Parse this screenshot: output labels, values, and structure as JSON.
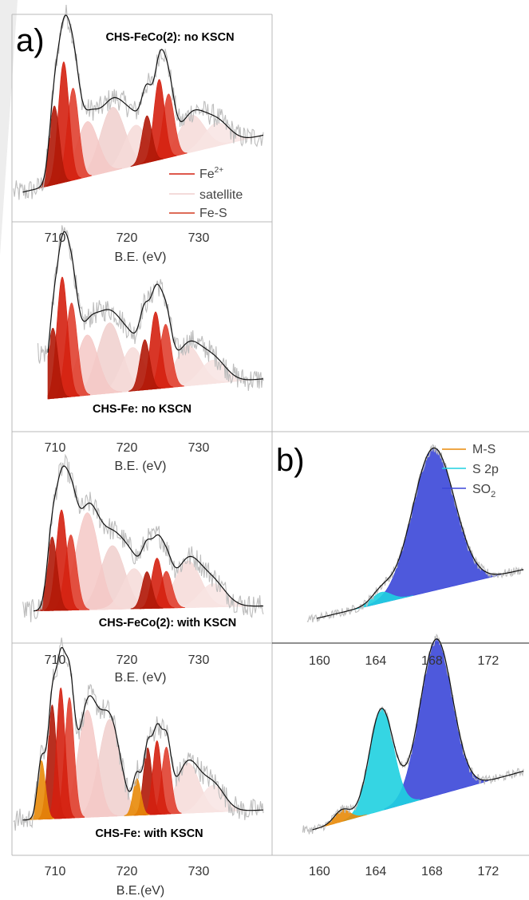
{
  "panel_labels": {
    "a": "a)",
    "b": "b)"
  },
  "chart_data": [
    {
      "id": "a1",
      "type": "area",
      "title": "CHS-FeCo(2): no KSCN",
      "xlabel": "B.E. (eV)",
      "xticks": [
        710,
        720,
        730
      ],
      "xlim": [
        704,
        739
      ],
      "legend": [
        "Fe2+",
        "satellite",
        "Fe-S"
      ],
      "legend_position": "right",
      "components": [
        {
          "series": "Fe-S",
          "center": 709.9,
          "height": 0.47,
          "width": 0.7,
          "color": "#b01808"
        },
        {
          "series": "Fe2+",
          "center": 711.2,
          "height": 0.72,
          "width": 0.75,
          "color": "#d42010"
        },
        {
          "series": "Fe2+",
          "center": 712.5,
          "height": 0.55,
          "width": 0.8,
          "color": "#e04030"
        },
        {
          "series": "satellite",
          "center": 714.5,
          "height": 0.33,
          "width": 1.5,
          "color": "#f4c8c6"
        },
        {
          "series": "satellite",
          "center": 718.0,
          "height": 0.38,
          "width": 1.7,
          "color": "#f0cfcd"
        },
        {
          "series": "satellite",
          "center": 721.2,
          "height": 0.24,
          "width": 1.6,
          "color": "#f6dad8"
        },
        {
          "series": "Fe-S",
          "center": 722.8,
          "height": 0.28,
          "width": 0.7,
          "color": "#b01808"
        },
        {
          "series": "Fe2+",
          "center": 724.5,
          "height": 0.48,
          "width": 0.75,
          "color": "#d42010"
        },
        {
          "series": "Fe2+",
          "center": 725.8,
          "height": 0.38,
          "width": 0.8,
          "color": "#e04030"
        },
        {
          "series": "satellite",
          "center": 729.0,
          "height": 0.22,
          "width": 1.8,
          "color": "#f6dad8"
        },
        {
          "series": "satellite",
          "center": 732.5,
          "height": 0.14,
          "width": 1.8,
          "color": "#f8e4e3"
        }
      ],
      "background": [
        [
          705.5,
          0.02
        ],
        [
          739,
          0.36
        ]
      ]
    },
    {
      "id": "a2",
      "type": "area",
      "title": "CHS-Fe: no KSCN",
      "xlabel": "B.E. (eV)",
      "xticks": [
        710,
        720,
        730
      ],
      "xlim": [
        704,
        739
      ],
      "components": [
        {
          "series": "Fe-S",
          "center": 709.7,
          "height": 0.42,
          "width": 0.7,
          "color": "#b01808"
        },
        {
          "series": "Fe2+",
          "center": 711.0,
          "height": 0.72,
          "width": 0.75,
          "color": "#d42010"
        },
        {
          "series": "Fe2+",
          "center": 712.3,
          "height": 0.56,
          "width": 0.8,
          "color": "#e04030"
        },
        {
          "series": "satellite",
          "center": 714.5,
          "height": 0.36,
          "width": 1.5,
          "color": "#f4c8c6"
        },
        {
          "series": "satellite",
          "center": 717.6,
          "height": 0.42,
          "width": 1.7,
          "color": "#f0cfcd"
        },
        {
          "series": "satellite",
          "center": 720.8,
          "height": 0.26,
          "width": 1.6,
          "color": "#f6dad8"
        },
        {
          "series": "Fe-S",
          "center": 722.5,
          "height": 0.3,
          "width": 0.7,
          "color": "#b01808"
        },
        {
          "series": "Fe2+",
          "center": 724.0,
          "height": 0.46,
          "width": 0.75,
          "color": "#d42010"
        },
        {
          "series": "Fe2+",
          "center": 725.4,
          "height": 0.38,
          "width": 0.8,
          "color": "#e04030"
        },
        {
          "series": "satellite",
          "center": 728.5,
          "height": 0.24,
          "width": 1.8,
          "color": "#f6dad8"
        },
        {
          "series": "satellite",
          "center": 732.0,
          "height": 0.14,
          "width": 1.8,
          "color": "#f8e4e3"
        }
      ],
      "background": [
        [
          709,
          0.0
        ],
        [
          739,
          0.12
        ]
      ]
    },
    {
      "id": "a3",
      "type": "area",
      "title": "CHS-FeCo(2): with KSCN",
      "xlabel": "B.E. (eV)",
      "xticks": [
        710,
        720,
        730
      ],
      "xlim": [
        704,
        739
      ],
      "components": [
        {
          "series": "Fe-S",
          "center": 709.6,
          "height": 0.44,
          "width": 0.7,
          "color": "#b01808"
        },
        {
          "series": "Fe2+",
          "center": 710.9,
          "height": 0.6,
          "width": 0.75,
          "color": "#d42010"
        },
        {
          "series": "Fe2+",
          "center": 712.2,
          "height": 0.45,
          "width": 0.8,
          "color": "#e04030"
        },
        {
          "series": "satellite",
          "center": 714.5,
          "height": 0.58,
          "width": 1.6,
          "color": "#f4c8c6"
        },
        {
          "series": "satellite",
          "center": 718.0,
          "height": 0.38,
          "width": 1.7,
          "color": "#f0cfcd"
        },
        {
          "series": "satellite",
          "center": 721.0,
          "height": 0.24,
          "width": 1.6,
          "color": "#f6dad8"
        },
        {
          "series": "Fe-S",
          "center": 722.8,
          "height": 0.22,
          "width": 0.7,
          "color": "#b01808"
        },
        {
          "series": "Fe2+",
          "center": 724.2,
          "height": 0.3,
          "width": 0.75,
          "color": "#d42010"
        },
        {
          "series": "Fe2+",
          "center": 725.5,
          "height": 0.22,
          "width": 0.8,
          "color": "#e04030"
        },
        {
          "series": "satellite",
          "center": 728.5,
          "height": 0.28,
          "width": 1.8,
          "color": "#f6dad8"
        },
        {
          "series": "satellite",
          "center": 732.0,
          "height": 0.14,
          "width": 1.8,
          "color": "#f8e4e3"
        }
      ],
      "background": [
        [
          707,
          0.02
        ],
        [
          739,
          0.05
        ]
      ]
    },
    {
      "id": "a4",
      "type": "area",
      "title": "CHS-Fe: with KSCN",
      "xlabel": "B.E.(eV)",
      "xticks": [
        710,
        720,
        730
      ],
      "xlim": [
        704,
        739
      ],
      "components": [
        {
          "series": "M-S",
          "center": 708.1,
          "height": 0.35,
          "width": 0.55,
          "color": "#e88a08"
        },
        {
          "series": "Fe-S",
          "center": 709.6,
          "height": 0.68,
          "width": 0.6,
          "color": "#b01808"
        },
        {
          "series": "Fe2+",
          "center": 710.8,
          "height": 0.78,
          "width": 0.6,
          "color": "#d42010"
        },
        {
          "series": "Fe2+",
          "center": 712.0,
          "height": 0.72,
          "width": 0.65,
          "color": "#e04030"
        },
        {
          "series": "satellite",
          "center": 714.5,
          "height": 0.64,
          "width": 1.3,
          "color": "#f4c8c6"
        },
        {
          "series": "satellite",
          "center": 717.6,
          "height": 0.58,
          "width": 1.5,
          "color": "#f0cfcd"
        },
        {
          "series": "M-S",
          "center": 721.4,
          "height": 0.22,
          "width": 0.55,
          "color": "#e88a08"
        },
        {
          "series": "Fe-S",
          "center": 722.9,
          "height": 0.4,
          "width": 0.6,
          "color": "#b01808"
        },
        {
          "series": "Fe2+",
          "center": 724.2,
          "height": 0.44,
          "width": 0.6,
          "color": "#d42010"
        },
        {
          "series": "Fe2+",
          "center": 725.5,
          "height": 0.4,
          "width": 0.65,
          "color": "#e04030"
        },
        {
          "series": "satellite",
          "center": 728.5,
          "height": 0.3,
          "width": 1.6,
          "color": "#f6dad8"
        },
        {
          "series": "satellite",
          "center": 732.0,
          "height": 0.16,
          "width": 1.6,
          "color": "#f8e4e3"
        }
      ],
      "background": [
        [
          705.5,
          0.02
        ],
        [
          739,
          0.08
        ]
      ]
    },
    {
      "id": "b1",
      "type": "area",
      "title": "",
      "xlabel": "",
      "xticks": [
        160,
        164,
        168,
        172
      ],
      "xlim": [
        156.8,
        174.5
      ],
      "legend": [
        "M-S",
        "S 2p",
        "SO2"
      ],
      "legend_position": "top-right",
      "components": [
        {
          "series": "S 2p",
          "center": 164.4,
          "height": 0.055,
          "width": 0.7,
          "color": "#1fd0e0"
        },
        {
          "series": "SO2",
          "center": 168.1,
          "height": 0.73,
          "width": 1.5,
          "color": "#3b47d8"
        }
      ],
      "background": [
        [
          159.8,
          0.0
        ],
        [
          174.5,
          0.25
        ]
      ]
    },
    {
      "id": "b2",
      "type": "area",
      "title": "",
      "xlabel": "",
      "xticks": [
        160,
        164,
        168,
        172
      ],
      "xlim": [
        156.8,
        174.5
      ],
      "components": [
        {
          "series": "M-S",
          "center": 161.6,
          "height": 0.06,
          "width": 0.55,
          "color": "#e88a08"
        },
        {
          "series": "S 2p",
          "center": 164.4,
          "height": 0.52,
          "width": 0.85,
          "color": "#1fd0e0"
        },
        {
          "series": "SO2",
          "center": 168.3,
          "height": 0.8,
          "width": 1.15,
          "color": "#3b47d8"
        }
      ],
      "background": [
        [
          159.5,
          0.0
        ],
        [
          174.5,
          0.3
        ]
      ]
    }
  ]
}
